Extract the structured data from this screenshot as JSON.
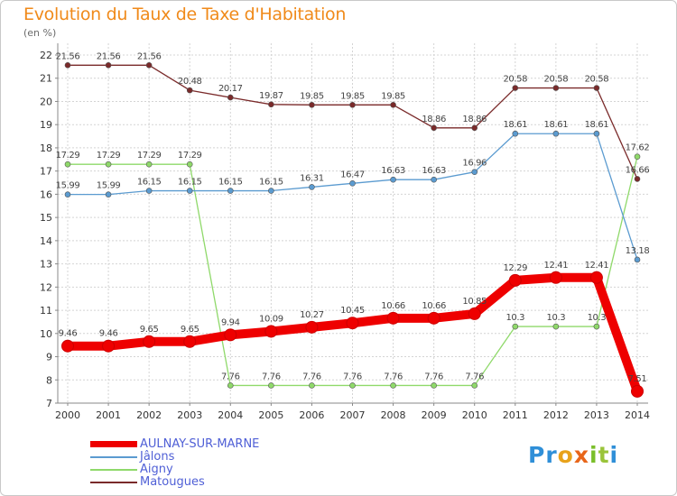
{
  "title": "Evolution du Taux de Taxe d'Habitation",
  "unit": "(en %)",
  "logo": {
    "letters": [
      "P",
      "r",
      "o",
      "x",
      "i",
      "t",
      "i"
    ],
    "colors": [
      "#2f8fd8",
      "#2f8fd8",
      "#e8a21a",
      "#e8661a",
      "#7abf2a",
      "#9ac43a",
      "#2f8fd8"
    ]
  },
  "chart_data": {
    "type": "line",
    "title": "Evolution du Taux de Taxe d'Habitation",
    "ylabel": "(en %)",
    "xlabel": "",
    "ylim": [
      7,
      22
    ],
    "yticks": [
      7,
      8,
      9,
      10,
      11,
      12,
      13,
      14,
      15,
      16,
      17,
      18,
      19,
      20,
      21,
      22
    ],
    "grid": true,
    "legend_position": "bottom-left",
    "x": [
      "2000",
      "2001",
      "2002",
      "2003",
      "2004",
      "2005",
      "2006",
      "2007",
      "2008",
      "2009",
      "2010",
      "2011",
      "2012",
      "2013",
      "2014"
    ],
    "series": [
      {
        "name": "AULNAY-SUR-MARNE",
        "color": "#ee0000",
        "values": [
          9.46,
          9.46,
          9.65,
          9.65,
          9.94,
          10.09,
          10.27,
          10.45,
          10.66,
          10.66,
          10.85,
          12.29,
          12.41,
          12.41,
          7.51
        ],
        "labels": [
          "9.46",
          "9.46",
          "9.65",
          "9.65",
          "9.94",
          "10.09",
          "10.27",
          "10.45",
          "10.66",
          "10.66",
          "10.85",
          "12.29",
          "12.41",
          "12.41",
          "7.51"
        ]
      },
      {
        "name": "Jâlons",
        "color": "#5b9bd0",
        "values": [
          15.99,
          15.99,
          16.15,
          16.15,
          16.15,
          16.15,
          16.31,
          16.47,
          16.63,
          16.63,
          16.96,
          18.61,
          18.61,
          18.61,
          13.18
        ],
        "labels": [
          "15.99",
          "15.99",
          "16.15",
          "16.15",
          "16.15",
          "16.15",
          "16.31",
          "16.47",
          "16.63",
          "16.63",
          "16.96",
          "18.61",
          "18.61",
          "18.61",
          "13.18"
        ]
      },
      {
        "name": "Aigny",
        "color": "#8fd96a",
        "values": [
          17.29,
          17.29,
          17.29,
          17.29,
          7.76,
          7.76,
          7.76,
          7.76,
          7.76,
          7.76,
          7.76,
          10.3,
          10.3,
          10.3,
          17.62
        ],
        "labels": [
          "17.29",
          "17.29",
          "17.29",
          "17.29",
          "7.76",
          "7.76",
          "7.76",
          "7.76",
          "7.76",
          "7.76",
          "7.76",
          "10.3",
          "10.3",
          "10.3",
          "17.62"
        ]
      },
      {
        "name": "Matougues",
        "color": "#7a2a2a",
        "values": [
          21.56,
          21.56,
          21.56,
          20.48,
          20.17,
          19.87,
          19.85,
          19.85,
          19.85,
          18.86,
          18.86,
          20.58,
          20.58,
          20.58,
          16.66
        ],
        "labels": [
          "21.56",
          "21.56",
          "21.56",
          "20.48",
          "20.17",
          "19.87",
          "19.85",
          "19.85",
          "19.85",
          "18.86",
          "18.86",
          "20.58",
          "20.58",
          "20.58",
          "16.66"
        ]
      }
    ]
  }
}
